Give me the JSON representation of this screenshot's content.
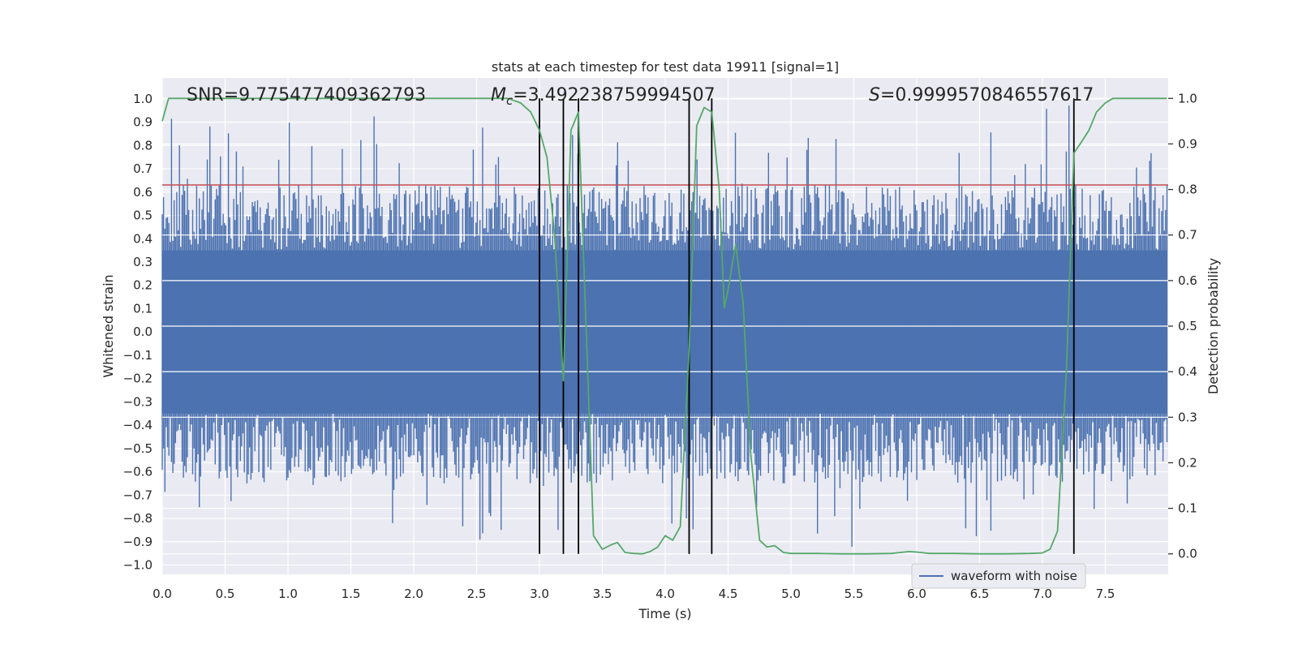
{
  "chart_data": {
    "type": "line",
    "title": "stats at each timestep for test data 19911 [signal=1]",
    "xlabel": "Time (s)",
    "ylabel_left": "Whitened strain",
    "ylabel_right": "Detection probability",
    "xlim": [
      0.0,
      8.0
    ],
    "ylim_left": [
      -1.04,
      1.09
    ],
    "ylim_right": [
      -0.045,
      1.045
    ],
    "x_ticks": [
      0.0,
      0.5,
      1.0,
      1.5,
      2.0,
      2.5,
      3.0,
      3.5,
      4.0,
      4.5,
      5.0,
      5.5,
      6.0,
      6.5,
      7.0,
      7.5
    ],
    "x_tick_labels": [
      "0.0",
      "0.5",
      "1.0",
      "1.5",
      "2.0",
      "2.5",
      "3.0",
      "3.5",
      "4.0",
      "4.5",
      "5.0",
      "5.5",
      "6.0",
      "6.5",
      "7.0",
      "7.5"
    ],
    "y_left_ticks": [
      1.0,
      0.9,
      0.8,
      0.7,
      0.6,
      0.5,
      0.4,
      0.3,
      0.2,
      0.1,
      0.0,
      -0.1,
      -0.2,
      -0.3,
      -0.4,
      -0.5,
      -0.6,
      -0.7,
      -0.8,
      -0.9,
      -1.0
    ],
    "y_left_tick_labels": [
      "1.0",
      "0.9",
      "0.8",
      "0.7",
      "0.6",
      "0.5",
      "0.4",
      "0.3",
      "0.2",
      "0.1",
      "0.0",
      "−0.1",
      "−0.2",
      "−0.3",
      "−0.4",
      "−0.5",
      "−0.6",
      "−0.7",
      "−0.8",
      "−0.9",
      "−1.0"
    ],
    "y_right_ticks": [
      1.0,
      0.9,
      0.8,
      0.7,
      0.6,
      0.5,
      0.4,
      0.3,
      0.2,
      0.1,
      0.0
    ],
    "y_right_tick_labels": [
      "1.0",
      "0.9",
      "0.8",
      "0.7",
      "0.6",
      "0.5",
      "0.4",
      "0.3",
      "0.2",
      "0.1",
      "0.0"
    ],
    "annotations": {
      "snr": "SNR=9.775477409362793",
      "mc_symbol": "M",
      "mc_sub": "c",
      "mc_value": "=3.492238759994507",
      "s_symbol": "S",
      "s_value": "=0.9999570846557617"
    },
    "waveform": {
      "name": "waveform with noise",
      "color": "#4c72b0",
      "x_start": 0.0,
      "x_end": 7.99,
      "n_points": 760,
      "band_upper": 0.35,
      "band_lower": -0.35,
      "peak_range": [
        -0.94,
        0.99
      ]
    },
    "detection_probability": {
      "color": "#55a868",
      "x": [
        0.0,
        0.05,
        0.1,
        0.2,
        0.4,
        0.6,
        0.8,
        1.0,
        1.2,
        1.4,
        1.6,
        1.8,
        2.0,
        2.2,
        2.4,
        2.6,
        2.75,
        2.85,
        2.93,
        3.0,
        3.06,
        3.12,
        3.19,
        3.25,
        3.31,
        3.37,
        3.43,
        3.5,
        3.57,
        3.62,
        3.68,
        3.75,
        3.82,
        3.88,
        3.94,
        4.0,
        4.06,
        4.12,
        4.19,
        4.25,
        4.31,
        4.37,
        4.43,
        4.47,
        4.5,
        4.56,
        4.62,
        4.68,
        4.75,
        4.81,
        4.87,
        4.94,
        5.0,
        5.2,
        5.4,
        5.6,
        5.8,
        5.94,
        6.0,
        6.1,
        6.3,
        6.5,
        6.7,
        6.9,
        7.0,
        7.06,
        7.12,
        7.19,
        7.25,
        7.3,
        7.37,
        7.43,
        7.5,
        7.56,
        7.62,
        7.7,
        7.8,
        7.9,
        7.99
      ],
      "y": [
        0.95,
        1.0,
        1.0,
        1.0,
        1.0,
        1.0,
        1.0,
        1.0,
        1.0,
        1.0,
        1.0,
        1.0,
        1.0,
        1.0,
        1.0,
        1.0,
        1.0,
        0.99,
        0.97,
        0.93,
        0.87,
        0.7,
        0.38,
        0.93,
        0.97,
        0.5,
        0.04,
        0.01,
        0.02,
        0.025,
        0.003,
        0.001,
        0.0,
        0.005,
        0.015,
        0.04,
        0.03,
        0.06,
        0.45,
        0.94,
        0.98,
        0.97,
        0.8,
        0.54,
        0.58,
        0.68,
        0.55,
        0.22,
        0.03,
        0.015,
        0.018,
        0.003,
        0.001,
        0.001,
        0.0,
        0.0,
        0.001,
        0.005,
        0.004,
        0.001,
        0.001,
        0.0,
        0.0,
        0.001,
        0.002,
        0.01,
        0.05,
        0.4,
        0.88,
        0.9,
        0.93,
        0.97,
        0.99,
        1.0,
        1.0,
        1.0,
        1.0,
        1.0,
        1.0
      ]
    },
    "threshold_line": {
      "value": 0.81,
      "color": "#c44e52"
    },
    "vertical_lines": [
      3.0,
      3.19,
      3.31,
      4.19,
      4.37,
      7.25
    ],
    "legend": {
      "label": "waveform with noise",
      "location": "lower-right"
    },
    "grid": true
  }
}
